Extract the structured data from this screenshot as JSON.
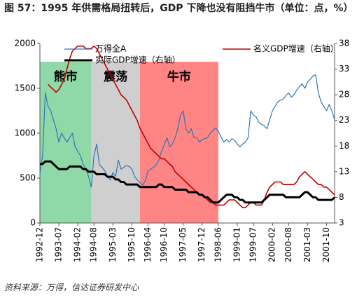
{
  "chart_data": {
    "type": "line",
    "title": "图 57：1995 年供需格局扭转后，GDP 下降也没有阻挡牛市（单位：点，%）",
    "source": "资料来源：万得，信达证券研发中心",
    "x": [
      "1992-12",
      "1993-01",
      "1993-02",
      "1993-03",
      "1993-04",
      "1993-05",
      "1993-06",
      "1993-07",
      "1993-08",
      "1993-09",
      "1993-10",
      "1993-11",
      "1993-12",
      "1994-01",
      "1994-02",
      "1994-03",
      "1994-04",
      "1994-05",
      "1994-06",
      "1994-07",
      "1994-08",
      "1994-09",
      "1994-10",
      "1994-11",
      "1994-12",
      "1995-01",
      "1995-02",
      "1995-03",
      "1995-04",
      "1995-05",
      "1995-06",
      "1995-07",
      "1995-08",
      "1995-09",
      "1995-10",
      "1995-11",
      "1995-12",
      "1996-01",
      "1996-02",
      "1996-03",
      "1996-04",
      "1996-05",
      "1996-06",
      "1996-07",
      "1996-08",
      "1996-09",
      "1996-10",
      "1996-11",
      "1996-12",
      "1997-01",
      "1997-02",
      "1997-03",
      "1997-04",
      "1997-05",
      "1997-06",
      "1997-07",
      "1997-08",
      "1997-09",
      "1997-10",
      "1997-11",
      "1997-12",
      "1998-01",
      "1998-02",
      "1998-03",
      "1998-04",
      "1998-05",
      "1998-06",
      "1998-07",
      "1998-08",
      "1998-09",
      "1998-10",
      "1998-11",
      "1998-12",
      "1999-01",
      "1999-02",
      "1999-03",
      "1999-04",
      "1999-05",
      "1999-06",
      "1999-07",
      "1999-08",
      "1999-09",
      "1999-10",
      "1999-11",
      "1999-12",
      "2000-01",
      "2000-02",
      "2000-03",
      "2000-04",
      "2000-05",
      "2000-06",
      "2000-07",
      "2000-08",
      "2000-09",
      "2000-10",
      "2000-11",
      "2000-12",
      "2001-01",
      "2001-02",
      "2001-03",
      "2001-04",
      "2001-05",
      "2001-06",
      "2001-07",
      "2001-08",
      "2001-09",
      "2001-10",
      "2001-11",
      "2001-12",
      "2002-01"
    ],
    "xticks": [
      "1992-12",
      "1993-07",
      "1994-02",
      "1994-08",
      "1995-03",
      "1995-10",
      "1996-04",
      "1996-10",
      "1997-05",
      "1997-12",
      "1998-06",
      "1999-01",
      "1999-07",
      "2000-02",
      "2000-08",
      "2001-03",
      "2001-10"
    ],
    "ylim": [
      0,
      2000
    ],
    "yticks": [
      0,
      500,
      1000,
      1500,
      2000
    ],
    "y2lim": [
      3,
      38
    ],
    "y2ticks": [
      3,
      8,
      13,
      18,
      23,
      28,
      33,
      38
    ],
    "regions": [
      {
        "label": "熊市",
        "start": "1992-12",
        "end": "1994-07",
        "color": "#8fd9a8"
      },
      {
        "label": "震荡",
        "start": "1994-07",
        "end": "1996-01",
        "color": "#cfcfcf"
      },
      {
        "label": "牛市",
        "start": "1996-01",
        "end": "1998-06",
        "color": "#ff8585"
      }
    ],
    "series": [
      {
        "name": "万得全A",
        "color": "#2e75b6",
        "linewidth": 1.2,
        "values": [
          550,
          750,
          1450,
          1300,
          1250,
          1150,
          1050,
          900,
          1000,
          950,
          900,
          950,
          1000,
          850,
          800,
          750,
          650,
          600,
          520,
          400,
          750,
          880,
          650,
          620,
          580,
          520,
          480,
          560,
          520,
          700,
          600,
          620,
          640,
          630,
          600,
          520,
          480,
          450,
          420,
          470,
          580,
          600,
          620,
          650,
          700,
          800,
          870,
          950,
          850,
          880,
          950,
          1050,
          1200,
          1250,
          1050,
          1000,
          1050,
          950,
          950,
          900,
          930,
          940,
          950,
          1000,
          1030,
          1060,
          1020,
          960,
          900,
          930,
          900,
          940,
          920,
          880,
          850,
          880,
          900,
          950,
          1250,
          1200,
          1180,
          1120,
          1100,
          1080,
          1050,
          1150,
          1250,
          1300,
          1350,
          1370,
          1380,
          1420,
          1450,
          1400,
          1430,
          1480,
          1520,
          1550,
          1500,
          1570,
          1600,
          1640,
          1650,
          1450,
          1350,
          1300,
          1250,
          1320,
          1250,
          1150
        ]
      },
      {
        "name": "名义GDP增速（右轴）",
        "color": "#c00000",
        "linewidth": 1.6,
        "axis": "y2",
        "values": [
          null,
          null,
          null,
          30,
          29.5,
          29,
          28.5,
          29,
          30,
          31,
          33,
          35,
          36.5,
          37,
          37.5,
          37.5,
          37.5,
          37,
          37,
          37,
          37.5,
          37,
          36,
          35,
          34,
          33,
          32,
          31,
          30,
          29,
          28,
          27.5,
          27,
          26,
          25,
          24,
          23,
          21.5,
          20.5,
          19.5,
          18.5,
          17.5,
          17,
          16.5,
          16,
          15.5,
          15.5,
          15,
          14.5,
          14,
          13,
          12.5,
          12,
          11.5,
          11,
          10.5,
          10,
          9.5,
          9,
          8.5,
          8.5,
          8,
          7.5,
          7,
          7,
          6.5,
          6.5,
          6.5,
          6.5,
          7,
          7.5,
          7.5,
          7.5,
          7,
          6.5,
          6,
          6,
          6.5,
          7,
          7,
          6.5,
          6.5,
          6.5,
          7.5,
          9,
          10,
          10.5,
          11,
          11,
          11,
          10.5,
          10.5,
          10.5,
          10.5,
          10.5,
          11,
          12,
          12.5,
          13,
          12.5,
          12,
          11.5,
          11,
          10.5,
          10.5,
          10,
          10,
          9.5,
          9,
          8.5
        ]
      },
      {
        "name": "实际GDP增速（右轴）",
        "color": "#000000",
        "linewidth": 3,
        "axis": "y2",
        "values": [
          14.5,
          14.5,
          15,
          15,
          15,
          14.5,
          14,
          13.5,
          13.5,
          13.5,
          13.5,
          14,
          14,
          14,
          14,
          14,
          13.5,
          13.5,
          13,
          13,
          13,
          12.5,
          12.5,
          12.5,
          12.5,
          12,
          12,
          12,
          11.5,
          11.5,
          11,
          11,
          10.5,
          10.5,
          10.5,
          10.5,
          10.5,
          10,
          10,
          10,
          10,
          10,
          10,
          10,
          10.5,
          10.5,
          10,
          10,
          10,
          10,
          9.5,
          9.5,
          9.5,
          9.5,
          9.5,
          9,
          9,
          9,
          9,
          8.5,
          8.5,
          8,
          8,
          7.5,
          7,
          7,
          7,
          7.5,
          8,
          8.5,
          8.5,
          8.5,
          8,
          8,
          7.5,
          7.5,
          7,
          7,
          7,
          7,
          7,
          7,
          7,
          7.5,
          8,
          8.5,
          8.5,
          8.5,
          8.5,
          8.5,
          8.5,
          8,
          8,
          8,
          8,
          8,
          8,
          8.5,
          9,
          9,
          8.5,
          8,
          8,
          7.5,
          7.5,
          7.5,
          7.5,
          7.5,
          7.5,
          8
        ]
      }
    ]
  }
}
